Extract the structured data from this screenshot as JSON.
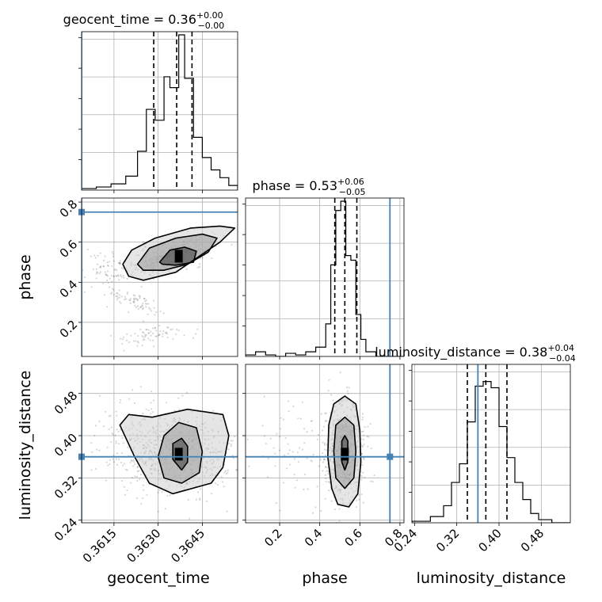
{
  "chart_data": {
    "type": "corner",
    "parameters": [
      "geocent_time",
      "phase",
      "luminosity_distance"
    ],
    "truth": {
      "geocent_time": 1126259462.3604,
      "phase": 0.75,
      "luminosity_distance": 0.36
    },
    "colors": {
      "truth": "#4682b4",
      "hist": "#000000",
      "grid": "#b0b0b0"
    },
    "titles": {
      "geocent_time": {
        "name": "geocent_time",
        "median": "0.36",
        "plus": "+0.00",
        "minus": "−0.00"
      },
      "phase": {
        "name": "phase",
        "median": "0.53",
        "plus": "+0.06",
        "minus": "−0.05"
      },
      "luminosity_distance": {
        "name": "luminosity_distance",
        "median": "0.38",
        "plus": "+0.04",
        "minus": "−0.04"
      }
    },
    "axes": {
      "geocent_time": {
        "range": [
          1126259462.3604,
          1126259462.3657
        ],
        "ticks": [
          1126259462.3615,
          1126259462.363,
          1126259462.3645
        ],
        "tick_labels": [
          "0.3615",
          "0.3630",
          "0.3645"
        ],
        "label": "geocent_time"
      },
      "phase": {
        "range": [
          0.03,
          0.82
        ],
        "ticks": [
          0.2,
          0.4,
          0.6,
          0.8
        ],
        "tick_labels": [
          "0.2",
          "0.4",
          "0.6",
          "0.8"
        ],
        "label": "phase"
      },
      "luminosity_distance": {
        "range": [
          0.235,
          0.535
        ],
        "ticks": [
          0.24,
          0.32,
          0.4,
          0.48
        ],
        "tick_labels": [
          "0.24",
          "0.32",
          "0.40",
          "0.48"
        ],
        "label": "luminosity_distance"
      }
    },
    "histograms": {
      "geocent_time": {
        "quantiles": [
          1126259462.36285,
          1126259462.36363,
          1126259462.36415
        ],
        "bins": [
          [
            1126259462.3604,
            1126259462.3609,
            0.01
          ],
          [
            1126259462.3609,
            1126259462.3614,
            0.02
          ],
          [
            1126259462.3614,
            1126259462.3619,
            0.04
          ],
          [
            1126259462.3619,
            1126259462.3623,
            0.09
          ],
          [
            1126259462.3623,
            1126259462.3626,
            0.25
          ],
          [
            1126259462.3626,
            1126259462.3629,
            0.52
          ],
          [
            1126259462.3629,
            1126259462.3632,
            0.45
          ],
          [
            1126259462.3632,
            1126259462.3634,
            0.73
          ],
          [
            1126259462.3634,
            1126259462.3637,
            0.66
          ],
          [
            1126259462.3637,
            1126259462.3639,
            1.0
          ],
          [
            1126259462.3639,
            1126259462.3642,
            0.72
          ],
          [
            1126259462.3642,
            1126259462.3645,
            0.34
          ],
          [
            1126259462.3645,
            1126259462.3648,
            0.21
          ],
          [
            1126259462.3648,
            1126259462.3651,
            0.13
          ],
          [
            1126259462.3651,
            1126259462.3654,
            0.08
          ],
          [
            1126259462.3654,
            1126259462.3657,
            0.03
          ]
        ]
      },
      "phase": {
        "quantiles": [
          0.475,
          0.525,
          0.585
        ],
        "bins": [
          [
            0.03,
            0.08,
            0.01
          ],
          [
            0.08,
            0.13,
            0.03
          ],
          [
            0.13,
            0.18,
            0.01
          ],
          [
            0.18,
            0.23,
            0.0
          ],
          [
            0.23,
            0.28,
            0.02
          ],
          [
            0.28,
            0.33,
            0.01
          ],
          [
            0.33,
            0.38,
            0.03
          ],
          [
            0.38,
            0.43,
            0.06
          ],
          [
            0.43,
            0.455,
            0.21
          ],
          [
            0.455,
            0.48,
            0.59
          ],
          [
            0.48,
            0.505,
            0.94
          ],
          [
            0.505,
            0.53,
            1.0
          ],
          [
            0.53,
            0.555,
            0.65
          ],
          [
            0.555,
            0.58,
            0.62
          ],
          [
            0.58,
            0.605,
            0.27
          ],
          [
            0.605,
            0.63,
            0.11
          ],
          [
            0.63,
            0.68,
            0.03
          ],
          [
            0.68,
            0.82,
            0.0
          ]
        ]
      },
      "luminosity_distance": {
        "quantiles": [
          0.34,
          0.375,
          0.415
        ],
        "bins": [
          [
            0.235,
            0.27,
            0.01
          ],
          [
            0.27,
            0.295,
            0.04
          ],
          [
            0.295,
            0.31,
            0.11
          ],
          [
            0.31,
            0.325,
            0.26
          ],
          [
            0.325,
            0.34,
            0.38
          ],
          [
            0.34,
            0.355,
            0.65
          ],
          [
            0.355,
            0.37,
            0.88
          ],
          [
            0.37,
            0.385,
            0.91
          ],
          [
            0.385,
            0.4,
            0.87
          ],
          [
            0.4,
            0.415,
            0.62
          ],
          [
            0.415,
            0.43,
            0.42
          ],
          [
            0.43,
            0.445,
            0.26
          ],
          [
            0.445,
            0.46,
            0.15
          ],
          [
            0.46,
            0.475,
            0.06
          ],
          [
            0.475,
            0.5,
            0.02
          ],
          [
            0.5,
            0.535,
            0.0
          ]
        ]
      }
    },
    "joint": {
      "phase_vs_geocent_time": {
        "center": [
          1126259462.3637,
          0.53
        ],
        "scatter_clusters": [
          {
            "cx": 1126259462.3635,
            "cy": 0.53,
            "sx": 0.00075,
            "sy": 0.05,
            "n": 350,
            "rot": 0.55
          },
          {
            "cx": 1126259462.3614,
            "cy": 0.46,
            "sx": 0.0006,
            "sy": 0.05,
            "n": 90,
            "rot": 0.0
          },
          {
            "cx": 1126259462.3622,
            "cy": 0.3,
            "sx": 0.0005,
            "sy": 0.04,
            "n": 70,
            "rot": -0.6
          },
          {
            "cx": 1126259462.3628,
            "cy": 0.14,
            "sx": 0.0007,
            "sy": 0.03,
            "n": 70,
            "rot": 0.3
          }
        ],
        "contours": [
          [
            [
              1126259462.36305,
              0.5
            ],
            [
              1126259462.3634,
              0.56
            ],
            [
              1126259462.3639,
              0.575
            ],
            [
              1126259462.3643,
              0.555
            ],
            [
              1126259462.3642,
              0.5
            ],
            [
              1126259462.3636,
              0.485
            ],
            [
              1126259462.36315,
              0.49
            ]
          ],
          [
            [
              1126259462.3623,
              0.49
            ],
            [
              1126259462.3627,
              0.57
            ],
            [
              1126259462.3636,
              0.62
            ],
            [
              1126259462.3645,
              0.64
            ],
            [
              1126259462.365,
              0.62
            ],
            [
              1126259462.3647,
              0.55
            ],
            [
              1126259462.364,
              0.49
            ],
            [
              1126259462.3632,
              0.46
            ],
            [
              1126259462.3625,
              0.46
            ]
          ],
          [
            [
              1126259462.3618,
              0.49
            ],
            [
              1126259462.3621,
              0.56
            ],
            [
              1126259462.3629,
              0.62
            ],
            [
              1126259462.3641,
              0.67
            ],
            [
              1126259462.3651,
              0.68
            ],
            [
              1126259462.3656,
              0.67
            ],
            [
              1126259462.3651,
              0.6
            ],
            [
              1126259462.3644,
              0.53
            ],
            [
              1126259462.3636,
              0.45
            ],
            [
              1126259462.3625,
              0.41
            ],
            [
              1126259462.362,
              0.43
            ]
          ]
        ]
      },
      "luminosity_distance_vs_geocent_time": {
        "center": [
          1126259462.3637,
          0.365
        ],
        "scatter_clusters": [
          {
            "cx": 1126259462.3634,
            "cy": 0.37,
            "sx": 0.0011,
            "sy": 0.045,
            "n": 650,
            "rot": -0.2
          }
        ],
        "contours": [
          [
            [
              1126259462.3635,
              0.355
            ],
            [
              1126259462.3635,
              0.385
            ],
            [
              1126259462.3638,
              0.395
            ],
            [
              1126259462.364,
              0.38
            ],
            [
              1126259462.364,
              0.35
            ],
            [
              1126259462.3638,
              0.335
            ]
          ],
          [
            [
              1126259462.3632,
              0.32
            ],
            [
              1126259462.363,
              0.36
            ],
            [
              1126259462.3632,
              0.4
            ],
            [
              1126259462.3637,
              0.425
            ],
            [
              1126259462.3643,
              0.415
            ],
            [
              1126259462.3645,
              0.37
            ],
            [
              1126259462.3644,
              0.33
            ],
            [
              1126259462.3638,
              0.31
            ]
          ],
          [
            [
              1126259462.3622,
              0.36
            ],
            [
              1126259462.3617,
              0.42
            ],
            [
              1126259462.362,
              0.44
            ],
            [
              1126259462.3628,
              0.435
            ],
            [
              1126259462.364,
              0.45
            ],
            [
              1126259462.3652,
              0.44
            ],
            [
              1126259462.3654,
              0.4
            ],
            [
              1126259462.3652,
              0.34
            ],
            [
              1126259462.3648,
              0.31
            ],
            [
              1126259462.3635,
              0.29
            ],
            [
              1126259462.3627,
              0.31
            ]
          ]
        ]
      },
      "luminosity_distance_vs_phase": {
        "center": [
          0.525,
          0.365
        ],
        "scatter_clusters": [
          {
            "cx": 0.525,
            "cy": 0.37,
            "sx": 0.05,
            "sy": 0.05,
            "n": 600,
            "rot": 0.0
          },
          {
            "cx": 0.3,
            "cy": 0.37,
            "sx": 0.12,
            "sy": 0.06,
            "n": 90,
            "rot": 0.0
          }
        ],
        "contours": [
          [
            [
              0.51,
              0.35
            ],
            [
              0.51,
              0.39
            ],
            [
              0.525,
              0.4
            ],
            [
              0.54,
              0.39
            ],
            [
              0.54,
              0.35
            ],
            [
              0.525,
              0.335
            ]
          ],
          [
            [
              0.48,
              0.32
            ],
            [
              0.47,
              0.37
            ],
            [
              0.48,
              0.42
            ],
            [
              0.525,
              0.435
            ],
            [
              0.57,
              0.42
            ],
            [
              0.58,
              0.37
            ],
            [
              0.57,
              0.32
            ],
            [
              0.525,
              0.3
            ]
          ],
          [
            [
              0.46,
              0.3
            ],
            [
              0.44,
              0.36
            ],
            [
              0.445,
              0.42
            ],
            [
              0.47,
              0.46
            ],
            [
              0.525,
              0.475
            ],
            [
              0.58,
              0.46
            ],
            [
              0.6,
              0.41
            ],
            [
              0.605,
              0.35
            ],
            [
              0.59,
              0.29
            ],
            [
              0.545,
              0.265
            ],
            [
              0.49,
              0.27
            ]
          ]
        ]
      }
    }
  }
}
